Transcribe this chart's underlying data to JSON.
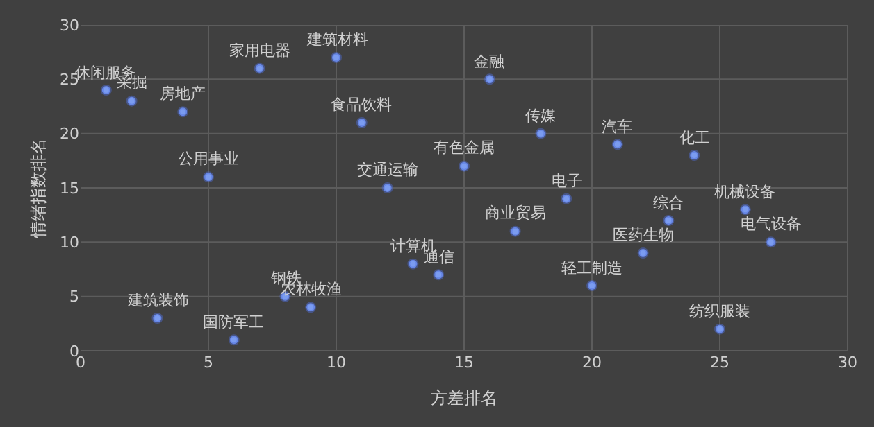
{
  "chart_data": {
    "type": "scatter",
    "xlabel": "方差排名",
    "ylabel": "情绪指数排名",
    "x": [
      1,
      2,
      4,
      7,
      10,
      11,
      5,
      12,
      15,
      16,
      18,
      21,
      24,
      19,
      17,
      23,
      26,
      27,
      22,
      20,
      25,
      13,
      14,
      8,
      9,
      3,
      6
    ],
    "series": [
      {
        "color": "#7b9cf0",
        "values": [
          24,
          23,
          22,
          26,
          27,
          21,
          16,
          15,
          17,
          25,
          20,
          19,
          18,
          14,
          11,
          12,
          13,
          10,
          9,
          6,
          2,
          8,
          7,
          5,
          4,
          3,
          1
        ]
      }
    ],
    "annotations": [
      {
        "text": "休闲服务",
        "x": 1,
        "y": 24
      },
      {
        "text": "采掘",
        "x": 2,
        "y": 23
      },
      {
        "text": "房地产",
        "x": 4,
        "y": 22
      },
      {
        "text": "家用电器",
        "x": 7,
        "y": 26
      },
      {
        "text": "建筑材料",
        "x": 10,
        "y": 27
      },
      {
        "text": "食品饮料",
        "x": 11,
        "y": 21
      },
      {
        "text": "公用事业",
        "x": 5,
        "y": 16
      },
      {
        "text": "交通运输",
        "x": 12,
        "y": 15
      },
      {
        "text": "有色金属",
        "x": 15,
        "y": 17
      },
      {
        "text": "金融",
        "x": 16,
        "y": 25
      },
      {
        "text": "传媒",
        "x": 18,
        "y": 20
      },
      {
        "text": "汽车",
        "x": 21,
        "y": 19
      },
      {
        "text": "化工",
        "x": 24,
        "y": 18
      },
      {
        "text": "电子",
        "x": 19,
        "y": 14
      },
      {
        "text": "商业贸易",
        "x": 17,
        "y": 11
      },
      {
        "text": "综合",
        "x": 23,
        "y": 12
      },
      {
        "text": "机械设备",
        "x": 26,
        "y": 13
      },
      {
        "text": "电气设备",
        "x": 27,
        "y": 10
      },
      {
        "text": "医药生物",
        "x": 22,
        "y": 9
      },
      {
        "text": "轻工制造",
        "x": 20,
        "y": 6
      },
      {
        "text": "纺织服装",
        "x": 25,
        "y": 2
      },
      {
        "text": "计算机",
        "x": 13,
        "y": 8
      },
      {
        "text": "通信",
        "x": 14,
        "y": 7
      },
      {
        "text": "钢铁",
        "x": 8,
        "y": 5
      },
      {
        "text": "农林牧渔",
        "x": 9,
        "y": 4
      },
      {
        "text": "建筑装饰",
        "x": 3,
        "y": 3
      },
      {
        "text": "国防军工",
        "x": 6,
        "y": 1
      }
    ],
    "xlim": [
      0,
      30
    ],
    "xticks": [
      0,
      5,
      10,
      15,
      20,
      25,
      30
    ],
    "ylim": [
      0,
      30
    ],
    "yticks": [
      0,
      5,
      10,
      15,
      20,
      25,
      30
    ],
    "grid": true,
    "marker": "circle"
  }
}
